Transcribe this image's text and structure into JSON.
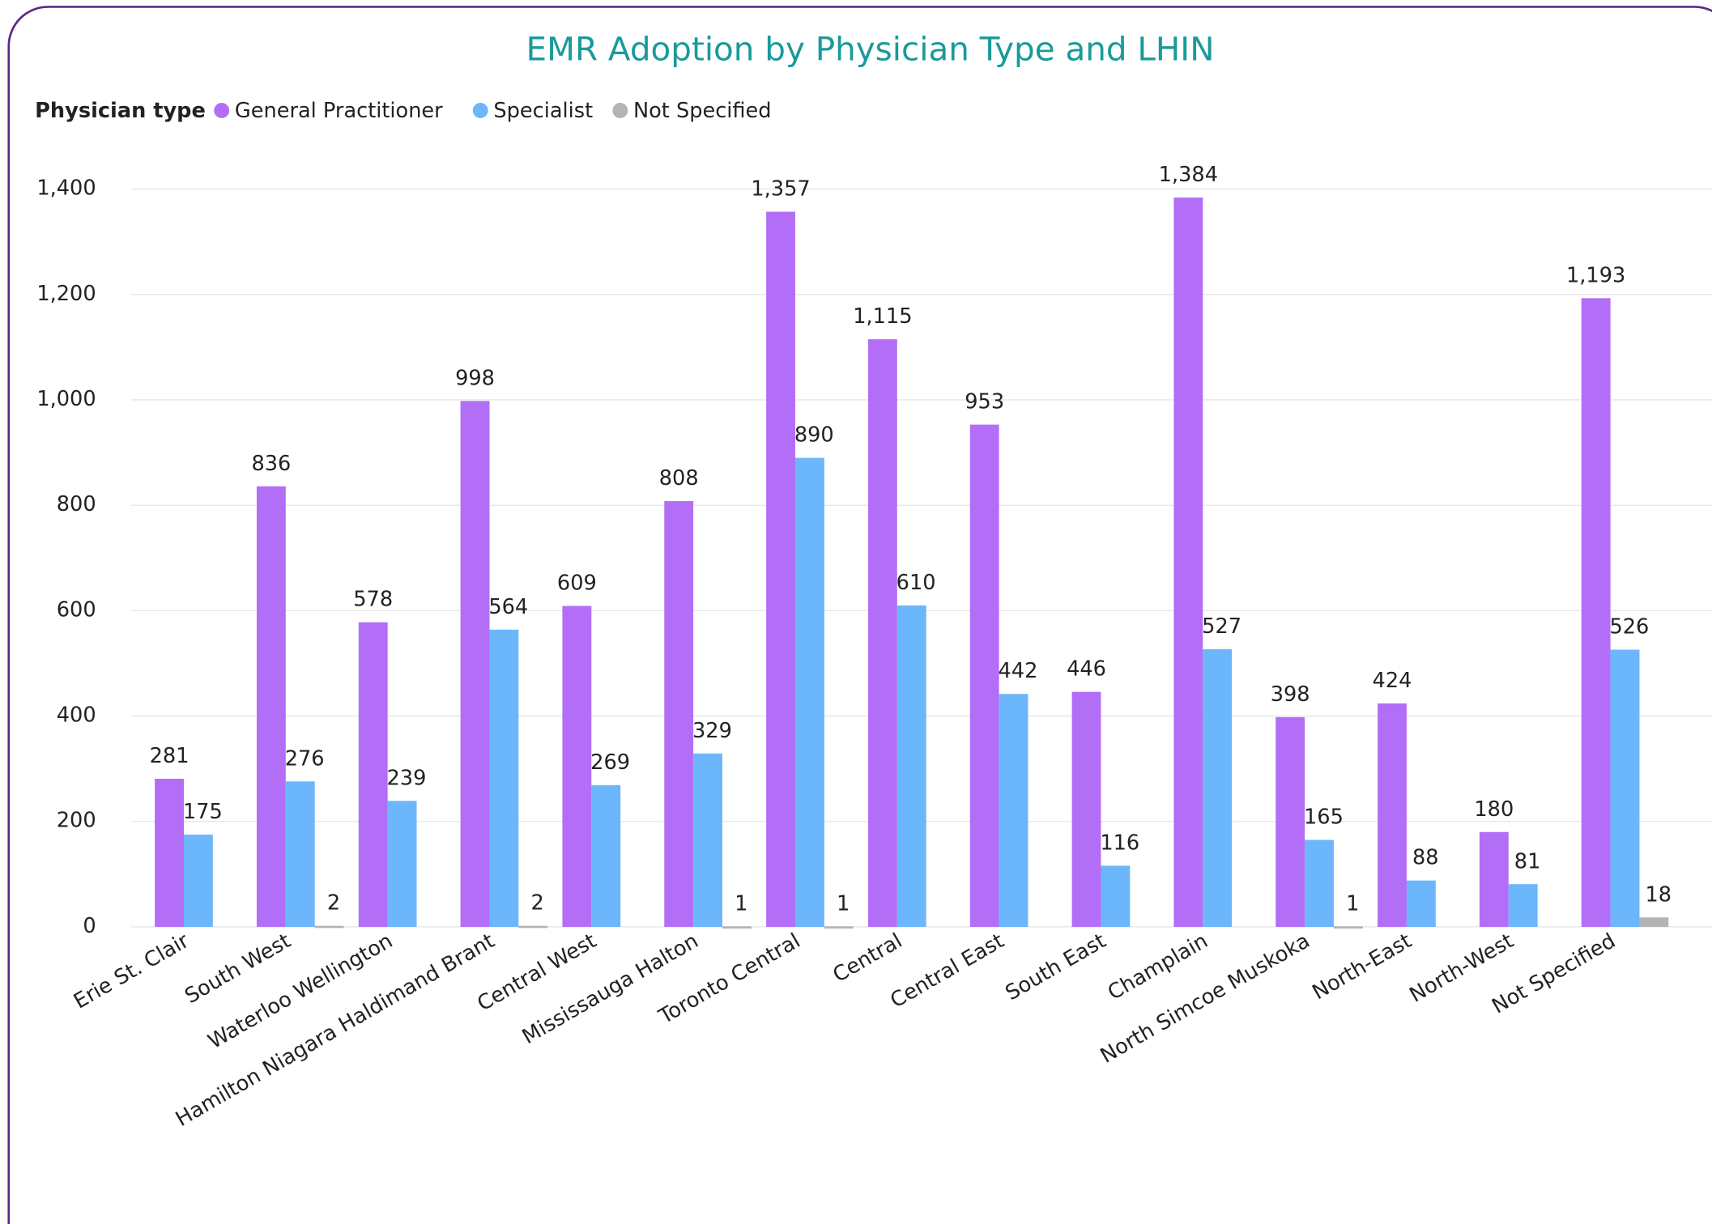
{
  "chart_data": {
    "type": "bar",
    "title": "EMR Adoption by Physician Type and LHIN",
    "legend_title": "Physician type",
    "legend_position": "top-left",
    "categories": [
      "Erie St. Clair",
      "South West",
      "Waterloo Wellington",
      "Hamilton Niagara Haldimand Brant",
      "Central West",
      "Mississauga Halton",
      "Toronto Central",
      "Central",
      "Central East",
      "South East",
      "Champlain",
      "North Simcoe Muskoka",
      "North-East",
      "North-West",
      "Not Specified"
    ],
    "series": [
      {
        "name": "General Practitioner",
        "color": "#b36ef7",
        "values": [
          281,
          836,
          578,
          998,
          609,
          808,
          1357,
          1115,
          953,
          446,
          1384,
          398,
          424,
          180,
          1193
        ],
        "value_labels": [
          "281",
          "836",
          "578",
          "998",
          "609",
          "808",
          "1,357",
          "1,115",
          "953",
          "446",
          "1,384",
          "398",
          "424",
          "180",
          "1,193"
        ]
      },
      {
        "name": "Specialist",
        "color": "#6cb6fb",
        "values": [
          175,
          276,
          239,
          564,
          269,
          329,
          890,
          610,
          442,
          116,
          527,
          165,
          88,
          81,
          526
        ]
      },
      {
        "name": "Not Specified",
        "color": "#b4b4b4",
        "values": [
          null,
          2,
          null,
          2,
          null,
          1,
          1,
          null,
          null,
          null,
          null,
          1,
          null,
          null,
          18
        ]
      }
    ],
    "ylim": [
      0,
      1400
    ],
    "yticks": [
      0,
      200,
      400,
      600,
      800,
      {
        "value": 1000,
        "label": "1,000"
      },
      {
        "value": 1200,
        "label": "1,200"
      },
      {
        "value": 1400,
        "label": "1,400"
      }
    ],
    "grid": true
  }
}
